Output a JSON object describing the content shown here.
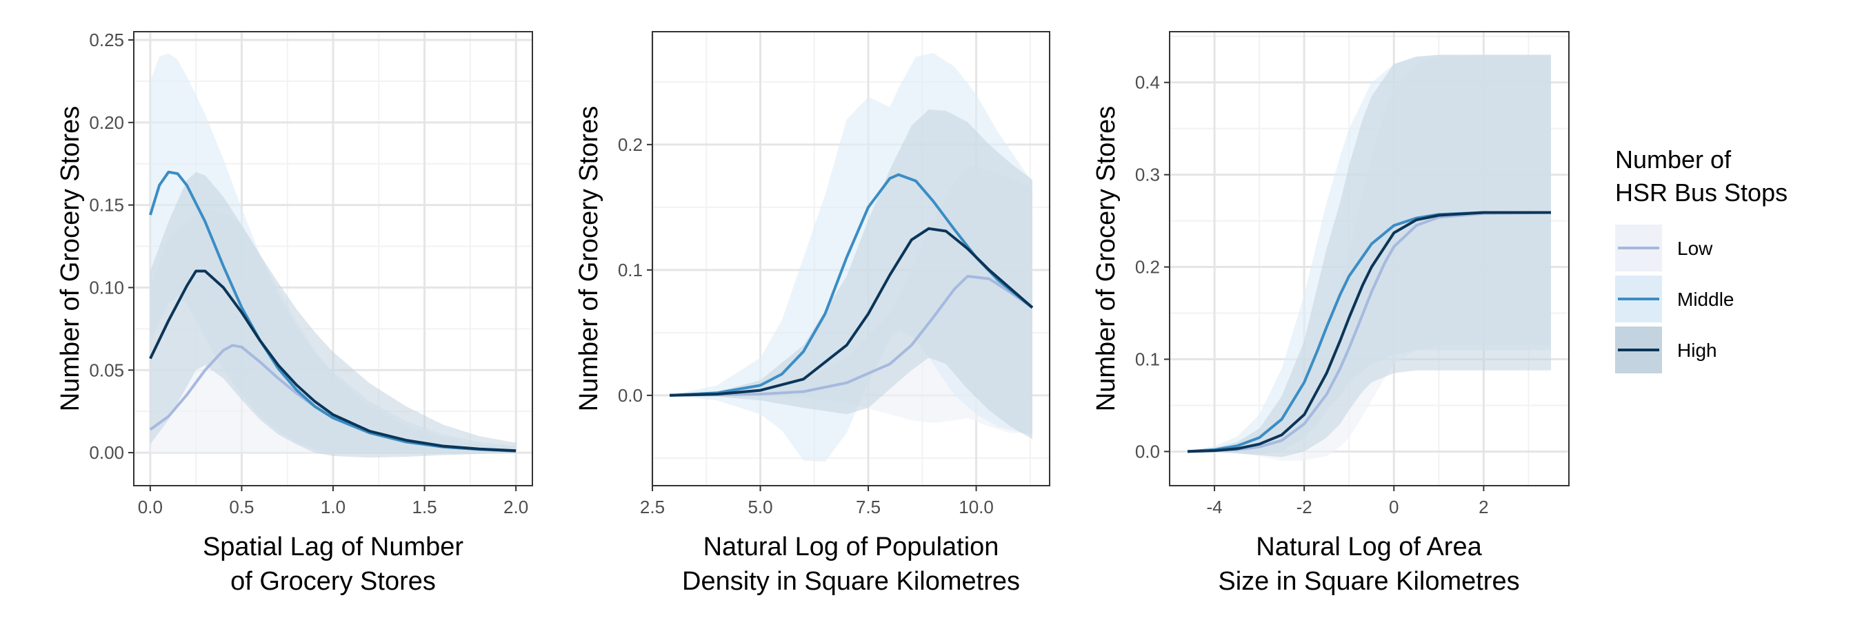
{
  "legend": {
    "title_lines": [
      "Number of",
      "HSR Bus Stops"
    ],
    "placement": "right",
    "entries": [
      {
        "label": "Low",
        "color": "#a6b9de"
      },
      {
        "label": "Middle",
        "color": "#3b8dc4"
      },
      {
        "label": "High",
        "color": "#0b3558"
      }
    ]
  },
  "colors": {
    "Low": "#a6b9de",
    "Middle": "#3b8dc4",
    "High": "#0b3558",
    "band_Low": "#eef1f8",
    "band_Middle": "#deecf7",
    "band_High": "#c3d3df",
    "grid_major": "#e5e5e5",
    "grid_minor": "#f2f2f2",
    "panel_border": "#333333"
  },
  "chart_data": [
    {
      "type": "line",
      "grid": true,
      "ylabel": "Number of Grocery Stores",
      "xlabel_lines": [
        "Spatial Lag of Number",
        "of Grocery Stores"
      ],
      "xlim": [
        -0.09,
        2.09
      ],
      "ylim": [
        -0.02,
        0.255
      ],
      "x_ticks": [
        0,
        0.5,
        1,
        1.5,
        2
      ],
      "x_tick_labels": [
        "0.0",
        "0.5",
        "1.0",
        "1.5",
        "2.0"
      ],
      "y_ticks": [
        0,
        0.05,
        0.1,
        0.15,
        0.2,
        0.25
      ],
      "y_tick_labels": [
        "0.00",
        "0.05",
        "0.10",
        "0.15",
        "0.20",
        "0.25"
      ],
      "series": [
        {
          "name": "Low",
          "x": [
            0,
            0.1,
            0.2,
            0.3,
            0.4,
            0.45,
            0.5,
            0.6,
            0.7,
            0.8,
            0.9,
            1.0,
            1.2,
            1.4,
            1.6,
            1.8,
            2.0
          ],
          "y": [
            0.014,
            0.022,
            0.035,
            0.05,
            0.062,
            0.065,
            0.064,
            0.055,
            0.045,
            0.036,
            0.028,
            0.021,
            0.012,
            0.0065,
            0.0035,
            0.002,
            0.001
          ],
          "lower": [
            0.0,
            0.0,
            0.0,
            0.0,
            0.0,
            0.0,
            0.0,
            0.0,
            0.0,
            0.0,
            0.0,
            0.0,
            0.0,
            0.0,
            0.0,
            0.0,
            0.0
          ],
          "upper": [
            0.1,
            0.13,
            0.14,
            0.148,
            0.145,
            0.142,
            0.138,
            0.12,
            0.1,
            0.08,
            0.062,
            0.047,
            0.028,
            0.016,
            0.009,
            0.005,
            0.003
          ]
        },
        {
          "name": "Middle",
          "x": [
            0,
            0.05,
            0.1,
            0.15,
            0.2,
            0.3,
            0.4,
            0.5,
            0.6,
            0.7,
            0.8,
            0.9,
            1.0,
            1.2,
            1.4,
            1.6,
            1.8,
            2.0
          ],
          "y": [
            0.144,
            0.162,
            0.17,
            0.169,
            0.162,
            0.14,
            0.113,
            0.088,
            0.068,
            0.051,
            0.038,
            0.028,
            0.021,
            0.012,
            0.0065,
            0.0035,
            0.002,
            0.001
          ],
          "lower": [
            0.065,
            0.08,
            0.09,
            0.095,
            0.09,
            0.07,
            0.05,
            0.035,
            0.022,
            0.013,
            0.006,
            0.002,
            0.0,
            0.0,
            0.0,
            0.0,
            0.0,
            0.0
          ],
          "upper": [
            0.225,
            0.24,
            0.242,
            0.238,
            0.228,
            0.205,
            0.178,
            0.148,
            0.12,
            0.096,
            0.077,
            0.061,
            0.049,
            0.031,
            0.019,
            0.011,
            0.0065,
            0.004
          ]
        },
        {
          "name": "High",
          "x": [
            0,
            0.1,
            0.2,
            0.25,
            0.3,
            0.4,
            0.5,
            0.6,
            0.7,
            0.8,
            0.9,
            1.0,
            1.2,
            1.4,
            1.6,
            1.8,
            2.0
          ],
          "y": [
            0.057,
            0.08,
            0.101,
            0.11,
            0.11,
            0.1,
            0.085,
            0.068,
            0.053,
            0.041,
            0.031,
            0.023,
            0.013,
            0.0075,
            0.004,
            0.0022,
            0.0012
          ],
          "lower": [
            0.005,
            0.02,
            0.04,
            0.05,
            0.053,
            0.045,
            0.032,
            0.02,
            0.011,
            0.005,
            0.0,
            -0.002,
            -0.003,
            -0.0025,
            -0.0015,
            -0.0008,
            -0.0003
          ],
          "upper": [
            0.11,
            0.14,
            0.165,
            0.17,
            0.168,
            0.155,
            0.138,
            0.12,
            0.103,
            0.087,
            0.073,
            0.061,
            0.042,
            0.028,
            0.017,
            0.01,
            0.006
          ]
        }
      ]
    },
    {
      "type": "line",
      "grid": true,
      "ylabel": "Number of Grocery Stores",
      "xlabel_lines": [
        "Natural Log of Population",
        "Density in Square Kilometres"
      ],
      "xlim": [
        2.5,
        11.7
      ],
      "ylim": [
        -0.072,
        0.29
      ],
      "x_ticks": [
        2.5,
        5,
        7.5,
        10
      ],
      "x_tick_labels": [
        "2.5",
        "5.0",
        "7.5",
        "10.0"
      ],
      "y_ticks": [
        0,
        0.1,
        0.2
      ],
      "y_tick_labels": [
        "0.0",
        "0.1",
        "0.2"
      ],
      "series": [
        {
          "name": "Low",
          "x": [
            2.9,
            4,
            5,
            6,
            7,
            8,
            8.5,
            9,
            9.5,
            9.8,
            10.3,
            10.8,
            11.3
          ],
          "y": [
            0.0,
            0.0005,
            0.001,
            0.003,
            0.01,
            0.025,
            0.04,
            0.062,
            0.085,
            0.095,
            0.093,
            0.082,
            0.07
          ],
          "lower": [
            0.0,
            0.0,
            -0.001,
            -0.002,
            -0.006,
            -0.015,
            -0.02,
            -0.022,
            -0.02,
            -0.018,
            -0.025,
            -0.03,
            -0.03
          ],
          "upper": [
            0.0,
            0.001,
            0.004,
            0.012,
            0.03,
            0.065,
            0.1,
            0.14,
            0.17,
            0.183,
            0.18,
            0.173,
            0.165
          ]
        },
        {
          "name": "Middle",
          "x": [
            2.9,
            4,
            5,
            5.5,
            6,
            6.5,
            7,
            7.5,
            8,
            8.2,
            8.6,
            9,
            9.5,
            10,
            10.5,
            11.3
          ],
          "y": [
            0.0,
            0.002,
            0.008,
            0.017,
            0.035,
            0.065,
            0.11,
            0.15,
            0.173,
            0.176,
            0.171,
            0.155,
            0.132,
            0.11,
            0.092,
            0.07
          ],
          "lower": [
            0.0,
            -0.004,
            -0.015,
            -0.028,
            -0.052,
            -0.053,
            -0.03,
            0.01,
            0.045,
            0.052,
            0.045,
            0.025,
            0.0,
            -0.015,
            -0.025,
            -0.032
          ],
          "upper": [
            0.0,
            0.008,
            0.03,
            0.06,
            0.11,
            0.16,
            0.22,
            0.238,
            0.23,
            0.245,
            0.27,
            0.273,
            0.262,
            0.24,
            0.21,
            0.17
          ]
        },
        {
          "name": "High",
          "x": [
            2.9,
            4,
            5,
            6,
            7,
            7.5,
            8,
            8.5,
            8.9,
            9.3,
            9.8,
            10.3,
            10.8,
            11.3
          ],
          "y": [
            0.0,
            0.001,
            0.004,
            0.013,
            0.04,
            0.065,
            0.096,
            0.124,
            0.133,
            0.131,
            0.117,
            0.1,
            0.085,
            0.07
          ],
          "lower": [
            0.0,
            -0.001,
            -0.004,
            -0.01,
            -0.015,
            -0.01,
            0.005,
            0.02,
            0.03,
            0.025,
            0.005,
            -0.012,
            -0.025,
            -0.035
          ],
          "upper": [
            0.0,
            0.003,
            0.012,
            0.04,
            0.095,
            0.14,
            0.18,
            0.215,
            0.228,
            0.227,
            0.218,
            0.2,
            0.185,
            0.172
          ]
        }
      ]
    },
    {
      "type": "line",
      "grid": true,
      "ylabel": "Number of Grocery Stores",
      "xlabel_lines": [
        "Natural Log of Area",
        "Size in Square Kilometres"
      ],
      "xlim": [
        -5,
        3.9
      ],
      "ylim": [
        -0.037,
        0.455
      ],
      "x_ticks": [
        -4,
        -2,
        0,
        2
      ],
      "x_tick_labels": [
        "-4",
        "-2",
        "0",
        "2"
      ],
      "y_ticks": [
        0,
        0.1,
        0.2,
        0.3,
        0.4
      ],
      "y_tick_labels": [
        "0.0",
        "0.1",
        "0.2",
        "0.3",
        "0.4"
      ],
      "series": [
        {
          "name": "Low",
          "x": [
            -4.6,
            -3.5,
            -3,
            -2.5,
            -2,
            -1.5,
            -1.2,
            -1,
            -0.8,
            -0.5,
            -0.2,
            0,
            0.5,
            1,
            2,
            3.5
          ],
          "y": [
            0.0,
            0.002,
            0.005,
            0.012,
            0.03,
            0.062,
            0.09,
            0.112,
            0.136,
            0.173,
            0.205,
            0.222,
            0.245,
            0.254,
            0.258,
            0.259
          ],
          "lower": [
            0.0,
            -0.002,
            -0.005,
            -0.01,
            -0.01,
            -0.005,
            0.005,
            0.015,
            0.03,
            0.055,
            0.08,
            0.095,
            0.11,
            0.115,
            0.115,
            0.115
          ],
          "upper": [
            0.0,
            0.006,
            0.015,
            0.034,
            0.07,
            0.13,
            0.18,
            0.215,
            0.26,
            0.32,
            0.37,
            0.395,
            0.42,
            0.428,
            0.43,
            0.43
          ]
        },
        {
          "name": "Middle",
          "x": [
            -4.6,
            -4,
            -3.5,
            -3,
            -2.5,
            -2,
            -1.7,
            -1.5,
            -1.2,
            -1,
            -0.5,
            0,
            0.5,
            1,
            2,
            3.5
          ],
          "y": [
            0.0,
            0.002,
            0.006,
            0.015,
            0.035,
            0.075,
            0.11,
            0.135,
            0.17,
            0.19,
            0.225,
            0.245,
            0.253,
            0.257,
            0.259,
            0.259
          ],
          "lower": [
            0.0,
            -0.001,
            -0.002,
            -0.003,
            0.0,
            0.015,
            0.03,
            0.045,
            0.06,
            0.075,
            0.095,
            0.105,
            0.11,
            0.11,
            0.11,
            0.11
          ],
          "upper": [
            0.0,
            0.006,
            0.016,
            0.04,
            0.09,
            0.17,
            0.23,
            0.27,
            0.32,
            0.35,
            0.4,
            0.42,
            0.428,
            0.43,
            0.43,
            0.43
          ]
        },
        {
          "name": "High",
          "x": [
            -4.6,
            -4,
            -3.5,
            -3,
            -2.5,
            -2,
            -1.5,
            -1.2,
            -1,
            -0.7,
            -0.5,
            0,
            0.5,
            1,
            2,
            3.5
          ],
          "y": [
            0.0,
            0.001,
            0.003,
            0.008,
            0.018,
            0.04,
            0.085,
            0.12,
            0.145,
            0.18,
            0.2,
            0.237,
            0.251,
            0.256,
            0.259,
            0.259
          ],
          "lower": [
            0.0,
            -0.001,
            -0.002,
            -0.004,
            -0.006,
            0.0,
            0.015,
            0.03,
            0.045,
            0.065,
            0.075,
            0.085,
            0.088,
            0.088,
            0.088,
            0.088
          ],
          "upper": [
            0.0,
            0.004,
            0.01,
            0.025,
            0.06,
            0.12,
            0.22,
            0.27,
            0.31,
            0.36,
            0.385,
            0.42,
            0.428,
            0.43,
            0.43,
            0.43
          ]
        }
      ]
    }
  ]
}
